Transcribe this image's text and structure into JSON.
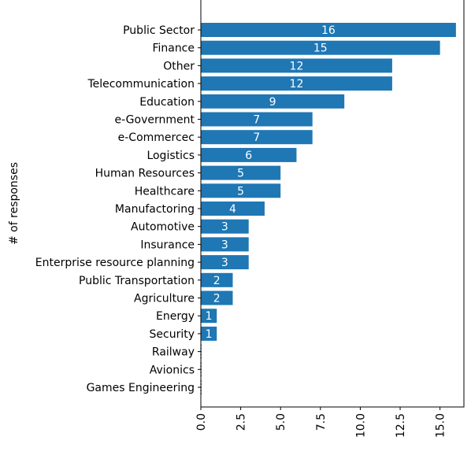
{
  "chart_data": {
    "type": "bar",
    "orientation": "horizontal",
    "categories": [
      "Public Sector",
      "Finance",
      "Other",
      "Telecommunication",
      "Education",
      "e-Government",
      "e-Commercec",
      "Logistics",
      "Human Resources",
      "Healthcare",
      "Manufactoring",
      "Automotive",
      "Insurance",
      "Enterprise resource planning",
      "Public Transportation",
      "Agriculture",
      "Energy",
      "Security",
      "Railway",
      "Avionics",
      "Games Engineering"
    ],
    "values": [
      16,
      15,
      12,
      12,
      9,
      7,
      7,
      6,
      5,
      5,
      4,
      3,
      3,
      3,
      2,
      2,
      1,
      1,
      0,
      0,
      0
    ],
    "data_labels": [
      "16",
      "15",
      "12",
      "12",
      "9",
      "7",
      "7",
      "6",
      "5",
      "5",
      "4",
      "3",
      "3",
      "3",
      "2",
      "2",
      "1",
      "1",
      "",
      "",
      ""
    ],
    "xticks": [
      "0.0",
      "2.5",
      "5.0",
      "7.5",
      "10.0",
      "12.5",
      "15.0"
    ],
    "xlim": [
      0,
      16.5
    ],
    "ylabel": "# of responses",
    "xlabel": "",
    "title": "",
    "bar_color": "#1f77b4",
    "label_color": "#ffffff",
    "grid": false,
    "legend": "none"
  }
}
